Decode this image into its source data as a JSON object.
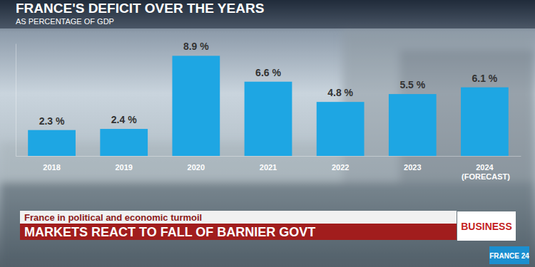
{
  "chart_data": {
    "type": "bar",
    "title": "FRANCE'S DEFICIT OVER THE YEARS",
    "subtitle": "AS PERCENTAGE OF GDP",
    "categories": [
      "2018",
      "2019",
      "2020",
      "2021",
      "2022",
      "2023",
      "2024 (FORECAST)"
    ],
    "values": [
      2.3,
      2.4,
      8.9,
      6.6,
      4.8,
      5.5,
      6.1
    ],
    "value_labels": [
      "2.3 %",
      "2.4 %",
      "8.9 %",
      "6.6 %",
      "4.8 %",
      "5.5 %",
      "6.1 %"
    ],
    "color": "#1ea6e3",
    "ylim": [
      0,
      10
    ],
    "data_labels": true,
    "tick_labels": "x"
  },
  "banner": {
    "kicker": "France in political and economic turmoil",
    "headline": "MARKETS REACT TO FALL OF BARNIER GOVT",
    "section": "BUSINESS",
    "logo": "FRANCE 24"
  }
}
